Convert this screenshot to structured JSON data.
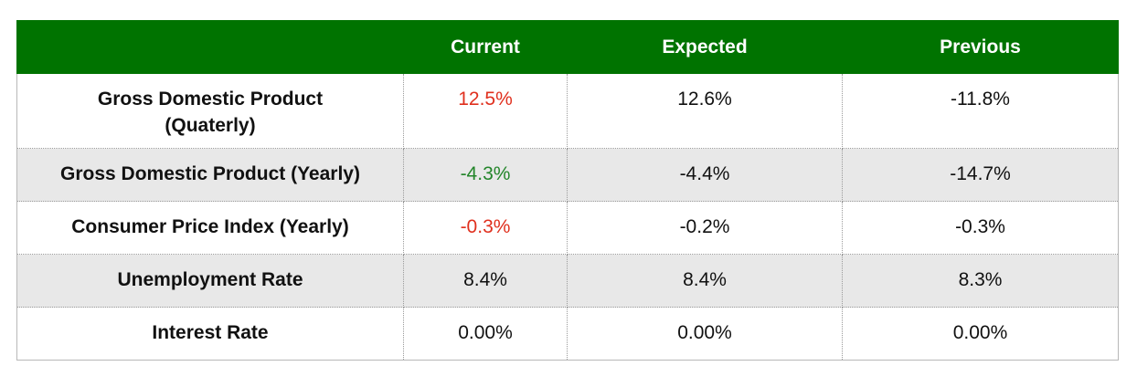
{
  "header": {
    "columns": [
      "Current",
      "Expected",
      "Previous"
    ]
  },
  "table": {
    "rows": [
      [
        "Gross Domestic Product\n(Quaterly)",
        "12.5%",
        "12.6%",
        "-11.8%"
      ],
      [
        "Gross Domestic Product (Yearly)",
        "-4.3%",
        "-4.4%",
        "-14.7%"
      ],
      [
        "Consumer Price Index (Yearly)",
        "-0.3%",
        "-0.2%",
        "-0.3%"
      ],
      [
        "Unemployment Rate",
        "8.4%",
        "8.4%",
        "8.3%"
      ],
      [
        "Interest Rate",
        "0.00%",
        "0.00%",
        "0.00%"
      ]
    ]
  }
}
